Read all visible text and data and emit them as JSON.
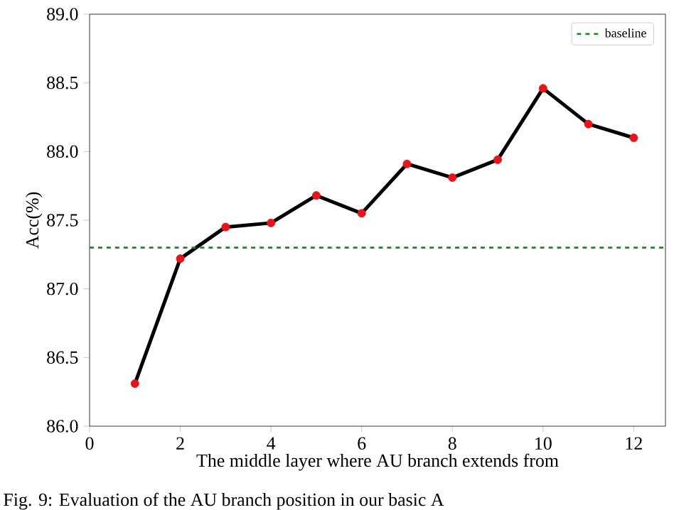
{
  "chart_data": {
    "type": "line",
    "xlabel": "The middle layer where AU branch extends from",
    "ylabel": "Acc(%)",
    "x": [
      1,
      2,
      3,
      4,
      5,
      6,
      7,
      8,
      9,
      10,
      11,
      12
    ],
    "series": [
      {
        "color": "#000000",
        "colors": [
          "#e8141c",
          "#e8141c",
          "#e8141c",
          "#e8141c",
          "#e8141c",
          "#e8141c",
          "#e8141c",
          "#e8141c",
          "#e8141c",
          "#e8141c",
          "#e8141c",
          "#e8141c"
        ],
        "values": [
          86.31,
          87.22,
          87.45,
          87.48,
          87.68,
          87.55,
          87.91,
          87.81,
          87.94,
          88.46,
          88.2,
          88.1
        ]
      }
    ],
    "xlim": [
      0,
      12.7
    ],
    "ylim": [
      86,
      89
    ],
    "xticks": [
      0,
      2,
      4,
      6,
      8,
      10,
      12
    ],
    "yticks": [
      {
        "value": 86,
        "label": "86.0"
      },
      86.5,
      {
        "value": 87,
        "label": "87.0"
      },
      87.5,
      {
        "value": 88,
        "label": "88.0"
      },
      88.5,
      {
        "value": 89,
        "label": "89.0"
      }
    ],
    "ref_lines": [
      {
        "axis": "y",
        "value": 87.3,
        "label": "baseline",
        "color": "#1a8a1a",
        "line_style": "dashed"
      }
    ],
    "legend": "top right",
    "marker": "circle",
    "line_style": "solid",
    "grid": false,
    "annotations": [
      "Fig. 9: Evaluation of the AU branch position in our basic A"
    ]
  }
}
